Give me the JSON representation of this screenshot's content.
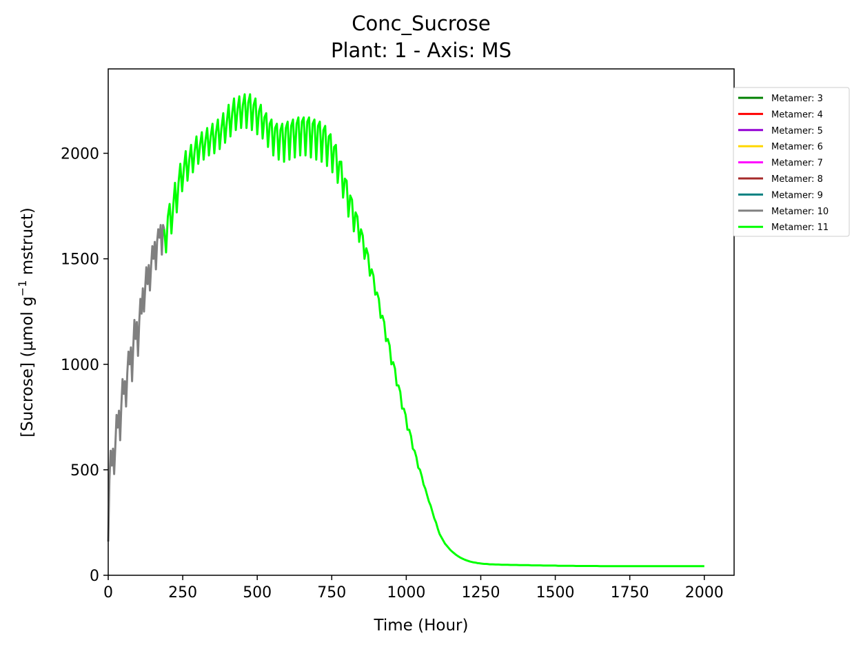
{
  "chart_data": {
    "type": "line",
    "title": "Conc_Sucrose",
    "subtitle": "Plant: 1 - Axis: MS",
    "xlabel": "Time (Hour)",
    "ylabel_main": "[Sucrose] (µmol g",
    "ylabel_sup": "−1",
    "ylabel_tail": " mstruct)",
    "xlim": [
      0,
      2100
    ],
    "ylim": [
      0,
      2400
    ],
    "x_ticks": [
      0,
      250,
      500,
      750,
      1000,
      1250,
      1500,
      1750,
      2000
    ],
    "y_ticks": [
      0,
      500,
      1000,
      1500,
      2000
    ],
    "grid": false,
    "legend_position": "outside-right-top",
    "series": [
      {
        "name": "Metamer: 3",
        "color": "#008000",
        "x": [],
        "y": []
      },
      {
        "name": "Metamer: 4",
        "color": "#ff0000",
        "x": [],
        "y": []
      },
      {
        "name": "Metamer: 5",
        "color": "#9400d3",
        "x": [],
        "y": []
      },
      {
        "name": "Metamer: 6",
        "color": "#ffd700",
        "x": [],
        "y": []
      },
      {
        "name": "Metamer: 7",
        "color": "#ff00ff",
        "x": [],
        "y": []
      },
      {
        "name": "Metamer: 8",
        "color": "#a52a2a",
        "x": [],
        "y": []
      },
      {
        "name": "Metamer: 9",
        "color": "#008080",
        "x": [],
        "y": []
      },
      {
        "name": "Metamer: 10",
        "color": "#808080",
        "x": [
          0,
          4,
          8,
          12,
          16,
          20,
          24,
          28,
          32,
          36,
          40,
          44,
          48,
          52,
          56,
          60,
          64,
          68,
          72,
          76,
          80,
          84,
          88,
          92,
          96,
          100,
          104,
          108,
          112,
          116,
          120,
          124,
          128,
          132,
          136,
          140,
          144,
          148,
          152,
          156,
          160,
          164,
          168,
          172,
          176,
          180,
          184,
          188
        ],
        "y": [
          160,
          450,
          590,
          520,
          600,
          480,
          620,
          760,
          700,
          780,
          640,
          800,
          930,
          860,
          920,
          800,
          960,
          1060,
          1000,
          1080,
          920,
          1080,
          1210,
          1120,
          1200,
          1040,
          1200,
          1310,
          1240,
          1360,
          1250,
          1360,
          1460,
          1380,
          1470,
          1350,
          1470,
          1560,
          1500,
          1580,
          1450,
          1580,
          1640,
          1600,
          1660,
          1520,
          1660,
          1640
        ]
      },
      {
        "name": "Metamer: 11",
        "color": "#00ff00",
        "x": [
          188,
          194,
          200,
          206,
          212,
          218,
          224,
          230,
          236,
          242,
          248,
          254,
          260,
          266,
          272,
          278,
          284,
          290,
          296,
          302,
          308,
          314,
          320,
          326,
          332,
          338,
          344,
          350,
          356,
          362,
          368,
          374,
          380,
          386,
          392,
          398,
          404,
          410,
          416,
          422,
          428,
          434,
          440,
          446,
          452,
          458,
          464,
          470,
          476,
          482,
          488,
          494,
          500,
          506,
          512,
          518,
          524,
          530,
          536,
          542,
          548,
          554,
          560,
          566,
          572,
          578,
          584,
          590,
          596,
          602,
          608,
          614,
          620,
          626,
          632,
          638,
          644,
          650,
          656,
          662,
          668,
          674,
          680,
          686,
          692,
          698,
          704,
          710,
          716,
          722,
          728,
          734,
          740,
          746,
          752,
          758,
          764,
          770,
          776,
          782,
          788,
          794,
          800,
          806,
          812,
          818,
          824,
          830,
          836,
          842,
          848,
          854,
          860,
          866,
          872,
          878,
          884,
          890,
          896,
          902,
          908,
          914,
          920,
          926,
          932,
          938,
          944,
          950,
          956,
          962,
          968,
          974,
          980,
          986,
          992,
          998,
          1004,
          1010,
          1016,
          1022,
          1028,
          1034,
          1040,
          1046,
          1052,
          1058,
          1064,
          1070,
          1076,
          1082,
          1088,
          1094,
          1100,
          1106,
          1112,
          1118,
          1124,
          1130,
          1136,
          1142,
          1148,
          1154,
          1160,
          1166,
          1172,
          1178,
          1184,
          1190,
          1196,
          1202,
          1208,
          1214,
          1220,
          1226,
          1232,
          1238,
          1244,
          1250,
          1256,
          1262,
          1268,
          1274,
          1280,
          1290,
          1300,
          1310,
          1320,
          1330,
          1340,
          1350,
          1360,
          1370,
          1380,
          1390,
          1400,
          1410,
          1420,
          1430,
          1440,
          1450,
          1460,
          1470,
          1480,
          1490,
          1500,
          1510,
          1520,
          1530,
          1540,
          1550,
          1560,
          1570,
          1580,
          1590,
          1600,
          1610,
          1620,
          1630,
          1640,
          1650,
          1660,
          1670,
          1680,
          1690,
          1700,
          1710,
          1720,
          1730,
          1740,
          1750,
          1760,
          1770,
          1780,
          1790,
          1800,
          1810,
          1820,
          1830,
          1840,
          1850,
          1860,
          1870,
          1880,
          1890,
          1900,
          1910,
          1920,
          1930,
          1940,
          1950,
          1960,
          1970,
          1980,
          1990,
          2000
        ],
        "y": [
          1640,
          1530,
          1700,
          1760,
          1620,
          1750,
          1860,
          1720,
          1860,
          1950,
          1820,
          1930,
          2010,
          1870,
          1970,
          2040,
          1910,
          2010,
          2080,
          1950,
          2040,
          2100,
          1970,
          2060,
          2120,
          1990,
          2080,
          2140,
          2000,
          2100,
          2160,
          2020,
          2120,
          2190,
          2050,
          2150,
          2230,
          2080,
          2190,
          2260,
          2110,
          2210,
          2270,
          2120,
          2230,
          2280,
          2120,
          2240,
          2280,
          2110,
          2230,
          2260,
          2090,
          2200,
          2230,
          2070,
          2170,
          2190,
          2030,
          2140,
          2160,
          1990,
          2120,
          2140,
          1970,
          2110,
          2140,
          1960,
          2120,
          2150,
          1970,
          2130,
          2160,
          1980,
          2140,
          2170,
          1990,
          2150,
          2170,
          1990,
          2150,
          2170,
          1980,
          2140,
          2160,
          1970,
          2130,
          2150,
          1960,
          2110,
          2130,
          1940,
          2080,
          2090,
          1910,
          2030,
          2040,
          1860,
          1960,
          1960,
          1790,
          1880,
          1870,
          1700,
          1800,
          1780,
          1630,
          1720,
          1700,
          1580,
          1640,
          1610,
          1500,
          1550,
          1520,
          1420,
          1450,
          1420,
          1330,
          1340,
          1310,
          1220,
          1230,
          1200,
          1110,
          1120,
          1090,
          1000,
          1010,
          980,
          900,
          900,
          870,
          790,
          790,
          760,
          690,
          690,
          660,
          600,
          590,
          560,
          510,
          500,
          470,
          430,
          410,
          380,
          350,
          330,
          300,
          270,
          250,
          220,
          195,
          180,
          165,
          150,
          140,
          130,
          120,
          112,
          105,
          98,
          92,
          87,
          82,
          78,
          74,
          71,
          68,
          65,
          63,
          61,
          60,
          58,
          57,
          56,
          55,
          54,
          54,
          53,
          52,
          52,
          51,
          51,
          50,
          50,
          50,
          49,
          49,
          49,
          48,
          48,
          48,
          48,
          47,
          47,
          47,
          47,
          46,
          46,
          46,
          46,
          46,
          45,
          45,
          45,
          45,
          45,
          45,
          44,
          44,
          44,
          44,
          44,
          44,
          44,
          44,
          43,
          43,
          43,
          43,
          43,
          43,
          43,
          43,
          43,
          43,
          43,
          43,
          43,
          43,
          43,
          43,
          43,
          43,
          43,
          43,
          43,
          43,
          43,
          43,
          43,
          43,
          43,
          43,
          43,
          43,
          43,
          43,
          43,
          43,
          43,
          43
        ]
      }
    ]
  }
}
